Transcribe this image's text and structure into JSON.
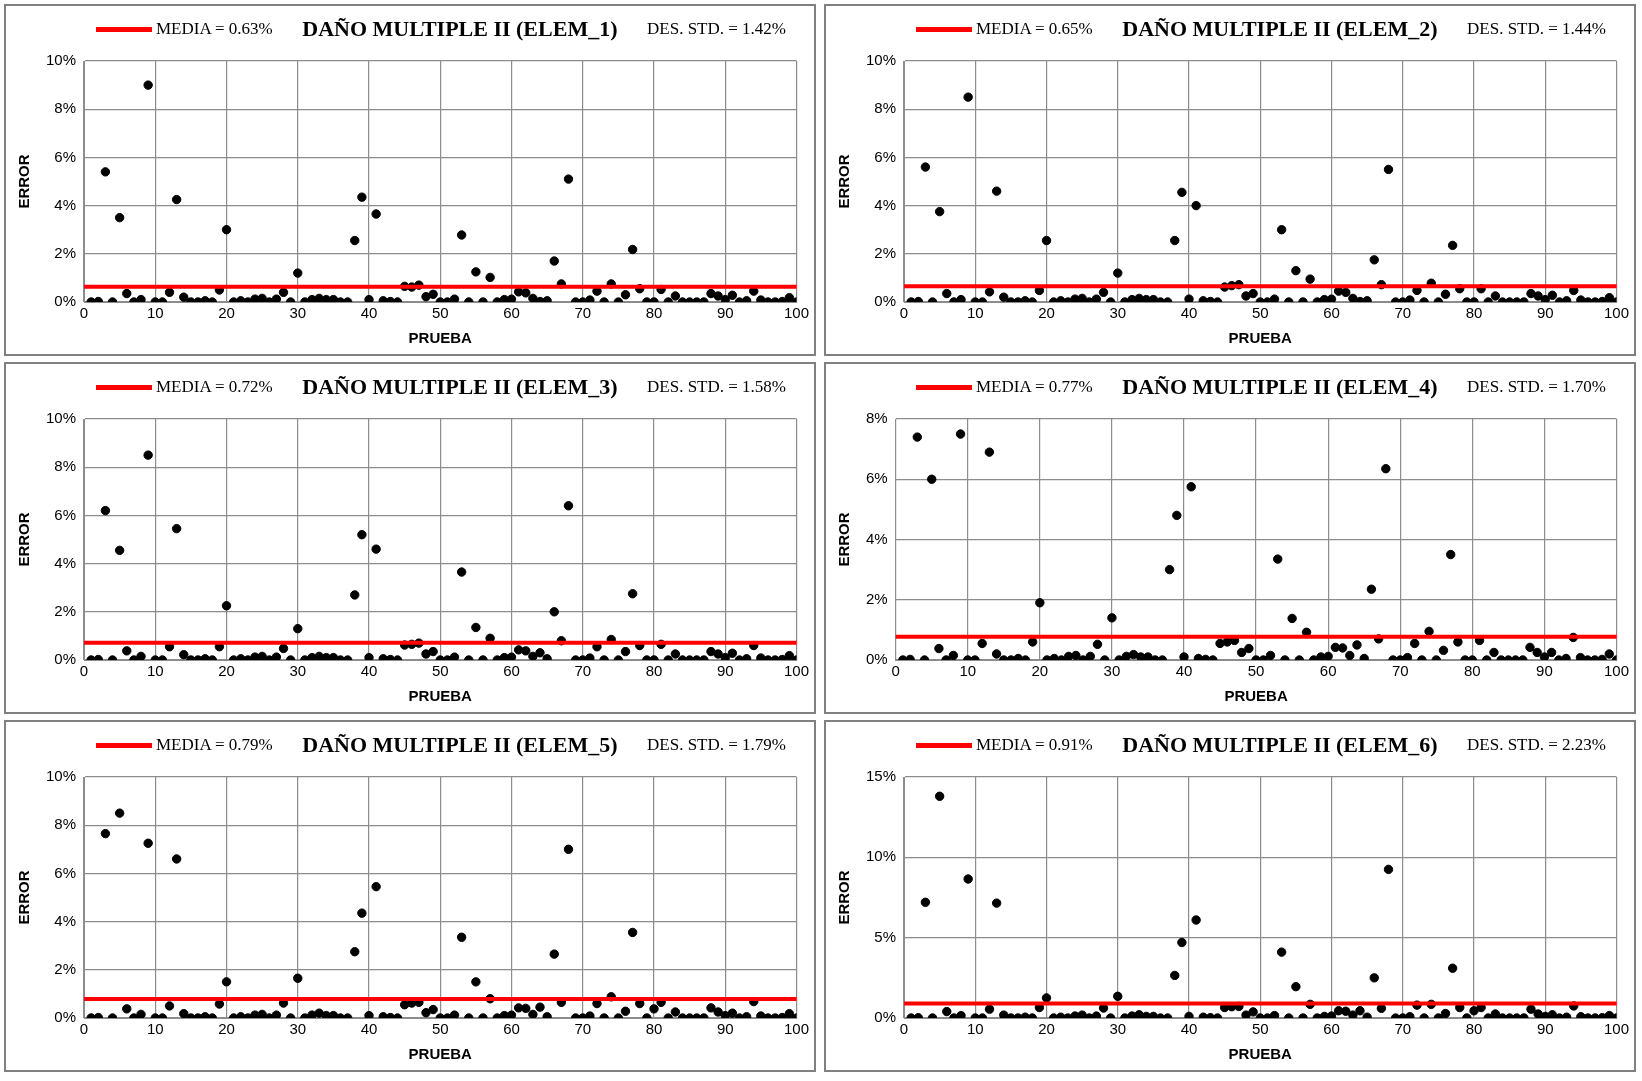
{
  "chart_data": [
    {
      "type": "scatter",
      "title": "DAÑO MULTIPLE II (ELEM_1)",
      "xlabel": "PRUEBA",
      "ylabel": "ERROR",
      "color": "#000000",
      "marker": "circle",
      "grid": true,
      "x": [
        1,
        2,
        3,
        4,
        5,
        6,
        7,
        8,
        9,
        10,
        11,
        12,
        13,
        14,
        15,
        16,
        17,
        18,
        19,
        20,
        21,
        22,
        23,
        24,
        25,
        26,
        27,
        28,
        29,
        30,
        31,
        32,
        33,
        34,
        35,
        36,
        37,
        38,
        39,
        40,
        41,
        42,
        43,
        44,
        45,
        46,
        47,
        48,
        49,
        50,
        51,
        52,
        53,
        54,
        55,
        56,
        57,
        58,
        59,
        60,
        61,
        62,
        63,
        64,
        65,
        66,
        67,
        68,
        69,
        70,
        71,
        72,
        73,
        74,
        75,
        76,
        77,
        78,
        79,
        80,
        81,
        82,
        83,
        84,
        85,
        86,
        87,
        88,
        89,
        90,
        91,
        92,
        93,
        94,
        95,
        96,
        97,
        98,
        99,
        100
      ],
      "values": [
        0,
        0.02,
        5.4,
        0,
        3.5,
        0.35,
        0,
        0.1,
        9.0,
        0,
        0,
        0.4,
        4.25,
        0.2,
        0,
        0,
        0.05,
        0,
        0.5,
        3.0,
        0,
        0.05,
        0,
        0.12,
        0.15,
        0,
        0.12,
        0.4,
        0,
        1.2,
        0,
        0.1,
        0.15,
        0.1,
        0.1,
        0,
        0,
        2.55,
        4.35,
        0.1,
        3.65,
        0.05,
        0.02,
        0,
        0.65,
        0.62,
        0.7,
        0.22,
        0.32,
        0,
        0,
        0.12,
        2.78,
        0,
        1.25,
        0,
        1.02,
        0,
        0.1,
        0.12,
        0.42,
        0.38,
        0.15,
        0.02,
        0.05,
        1.7,
        0.75,
        5.1,
        0,
        0,
        0.08,
        0.45,
        0,
        0.75,
        0,
        0.3,
        2.18,
        0.55,
        0,
        0,
        0.52,
        0,
        0.25,
        0,
        0,
        0,
        0,
        0.35,
        0.25,
        0.1,
        0.28,
        0,
        0.05,
        0.45,
        0.08,
        0,
        0,
        0.02,
        0.18,
        0
      ],
      "xlim": [
        0,
        100
      ],
      "xticks": [
        0,
        10,
        20,
        30,
        40,
        50,
        60,
        70,
        80,
        90,
        100
      ],
      "ylim": [
        0,
        10
      ],
      "yticks": [
        {
          "value": 0,
          "label": "0%"
        },
        {
          "value": 2,
          "label": "2%"
        },
        {
          "value": 4,
          "label": "4%"
        },
        {
          "value": 6,
          "label": "6%"
        },
        {
          "value": 8,
          "label": "8%"
        },
        {
          "value": 10,
          "label": "10%"
        }
      ],
      "ref_lines": [
        {
          "axis": "y",
          "value": 0.63,
          "label": "MEDIA = 0.63%",
          "color": "#ff0000"
        }
      ],
      "annotations": [
        "DES. STD. = 1.42%"
      ]
    },
    {
      "type": "scatter",
      "title": "DAÑO MULTIPLE II (ELEM_2)",
      "xlabel": "PRUEBA",
      "ylabel": "ERROR",
      "color": "#000000",
      "marker": "circle",
      "grid": true,
      "x": [
        1,
        2,
        3,
        4,
        5,
        6,
        7,
        8,
        9,
        10,
        11,
        12,
        13,
        14,
        15,
        16,
        17,
        18,
        19,
        20,
        21,
        22,
        23,
        24,
        25,
        26,
        27,
        28,
        29,
        30,
        31,
        32,
        33,
        34,
        35,
        36,
        37,
        38,
        39,
        40,
        41,
        42,
        43,
        44,
        45,
        46,
        47,
        48,
        49,
        50,
        51,
        52,
        53,
        54,
        55,
        56,
        57,
        58,
        59,
        60,
        61,
        62,
        63,
        64,
        65,
        66,
        67,
        68,
        69,
        70,
        71,
        72,
        73,
        74,
        75,
        76,
        77,
        78,
        79,
        80,
        81,
        82,
        83,
        84,
        85,
        86,
        87,
        88,
        89,
        90,
        91,
        92,
        93,
        94,
        95,
        96,
        97,
        98,
        99,
        100
      ],
      "values": [
        0,
        0.02,
        5.6,
        0,
        3.75,
        0.35,
        0,
        0.1,
        8.5,
        0,
        0,
        0.42,
        4.6,
        0.2,
        0,
        0,
        0.05,
        0,
        0.48,
        2.55,
        0,
        0.05,
        0,
        0.12,
        0.15,
        0,
        0.12,
        0.4,
        0,
        1.2,
        0,
        0.1,
        0.15,
        0.1,
        0.1,
        0,
        0,
        2.55,
        4.55,
        0.12,
        4.0,
        0.05,
        0.02,
        0,
        0.62,
        0.68,
        0.72,
        0.25,
        0.35,
        0,
        0,
        0.12,
        3.0,
        0,
        1.3,
        0,
        0.95,
        0,
        0.1,
        0.12,
        0.45,
        0.4,
        0.15,
        0.02,
        0.05,
        1.75,
        0.72,
        5.5,
        0,
        0,
        0.08,
        0.48,
        0,
        0.78,
        0,
        0.32,
        2.35,
        0.55,
        0,
        0,
        0.55,
        0,
        0.25,
        0,
        0,
        0,
        0,
        0.35,
        0.25,
        0.1,
        0.28,
        0,
        0.05,
        0.48,
        0.08,
        0,
        0,
        0.02,
        0.18,
        0
      ],
      "xlim": [
        0,
        100
      ],
      "xticks": [
        0,
        10,
        20,
        30,
        40,
        50,
        60,
        70,
        80,
        90,
        100
      ],
      "ylim": [
        0,
        10
      ],
      "yticks": [
        {
          "value": 0,
          "label": "0%"
        },
        {
          "value": 2,
          "label": "2%"
        },
        {
          "value": 4,
          "label": "4%"
        },
        {
          "value": 6,
          "label": "6%"
        },
        {
          "value": 8,
          "label": "8%"
        },
        {
          "value": 10,
          "label": "10%"
        }
      ],
      "ref_lines": [
        {
          "axis": "y",
          "value": 0.65,
          "label": "MEDIA = 0.65%",
          "color": "#ff0000"
        }
      ],
      "annotations": [
        "DES. STD. = 1.44%"
      ]
    },
    {
      "type": "scatter",
      "title": "DAÑO MULTIPLE II (ELEM_3)",
      "xlabel": "PRUEBA",
      "ylabel": "ERROR",
      "color": "#000000",
      "marker": "circle",
      "grid": true,
      "x": [
        1,
        2,
        3,
        4,
        5,
        6,
        7,
        8,
        9,
        10,
        11,
        12,
        13,
        14,
        15,
        16,
        17,
        18,
        19,
        20,
        21,
        22,
        23,
        24,
        25,
        26,
        27,
        28,
        29,
        30,
        31,
        32,
        33,
        34,
        35,
        36,
        37,
        38,
        39,
        40,
        41,
        42,
        43,
        44,
        45,
        46,
        47,
        48,
        49,
        50,
        51,
        52,
        53,
        54,
        55,
        56,
        57,
        58,
        59,
        60,
        61,
        62,
        63,
        64,
        65,
        66,
        67,
        68,
        69,
        70,
        71,
        72,
        73,
        74,
        75,
        76,
        77,
        78,
        79,
        80,
        81,
        82,
        83,
        84,
        85,
        86,
        87,
        88,
        89,
        90,
        91,
        92,
        93,
        94,
        95,
        96,
        97,
        98,
        99,
        100
      ],
      "values": [
        0,
        0.02,
        6.2,
        0,
        4.55,
        0.38,
        0,
        0.15,
        8.5,
        0,
        0,
        0.55,
        5.45,
        0.22,
        0,
        0,
        0.05,
        0,
        0.55,
        2.25,
        0,
        0.05,
        0,
        0.12,
        0.15,
        0,
        0.12,
        0.48,
        0,
        1.3,
        0,
        0.1,
        0.15,
        0.1,
        0.1,
        0,
        0,
        2.7,
        5.2,
        0.1,
        4.6,
        0.05,
        0.02,
        0,
        0.62,
        0.65,
        0.7,
        0.25,
        0.35,
        0,
        0,
        0.12,
        3.65,
        0,
        1.35,
        0,
        0.9,
        0,
        0.1,
        0.12,
        0.42,
        0.38,
        0.15,
        0.3,
        0.05,
        2.0,
        0.8,
        6.4,
        0,
        0,
        0.08,
        0.55,
        0,
        0.85,
        0,
        0.35,
        2.75,
        0.6,
        0,
        0,
        0.65,
        0,
        0.25,
        0,
        0,
        0,
        0,
        0.35,
        0.25,
        0.1,
        0.28,
        0,
        0.05,
        0.6,
        0.08,
        0,
        0,
        0.02,
        0.18,
        0
      ],
      "xlim": [
        0,
        100
      ],
      "xticks": [
        0,
        10,
        20,
        30,
        40,
        50,
        60,
        70,
        80,
        90,
        100
      ],
      "ylim": [
        0,
        10
      ],
      "yticks": [
        {
          "value": 0,
          "label": "0%"
        },
        {
          "value": 2,
          "label": "2%"
        },
        {
          "value": 4,
          "label": "4%"
        },
        {
          "value": 6,
          "label": "6%"
        },
        {
          "value": 8,
          "label": "8%"
        },
        {
          "value": 10,
          "label": "10%"
        }
      ],
      "ref_lines": [
        {
          "axis": "y",
          "value": 0.72,
          "label": "MEDIA = 0.72%",
          "color": "#ff0000"
        }
      ],
      "annotations": [
        "DES. STD. = 1.58%"
      ]
    },
    {
      "type": "scatter",
      "title": "DAÑO MULTIPLE II (ELEM_4)",
      "xlabel": "PRUEBA",
      "ylabel": "ERROR",
      "color": "#000000",
      "marker": "circle",
      "grid": true,
      "x": [
        1,
        2,
        3,
        4,
        5,
        6,
        7,
        8,
        9,
        10,
        11,
        12,
        13,
        14,
        15,
        16,
        17,
        18,
        19,
        20,
        21,
        22,
        23,
        24,
        25,
        26,
        27,
        28,
        29,
        30,
        31,
        32,
        33,
        34,
        35,
        36,
        37,
        38,
        39,
        40,
        41,
        42,
        43,
        44,
        45,
        46,
        47,
        48,
        49,
        50,
        51,
        52,
        53,
        54,
        55,
        56,
        57,
        58,
        59,
        60,
        61,
        62,
        63,
        64,
        65,
        66,
        67,
        68,
        69,
        70,
        71,
        72,
        73,
        74,
        75,
        76,
        77,
        78,
        79,
        80,
        81,
        82,
        83,
        84,
        85,
        86,
        87,
        88,
        89,
        90,
        91,
        92,
        93,
        94,
        95,
        96,
        97,
        98,
        99,
        100
      ],
      "values": [
        0,
        0.02,
        7.4,
        0,
        6.0,
        0.38,
        0,
        0.15,
        7.5,
        0,
        0,
        0.55,
        6.9,
        0.2,
        0,
        0,
        0.05,
        0,
        0.6,
        1.9,
        0,
        0.05,
        0,
        0.12,
        0.15,
        0,
        0.12,
        0.52,
        0,
        1.4,
        0,
        0.12,
        0.18,
        0.1,
        0.1,
        0,
        0,
        3.0,
        4.8,
        0.1,
        5.75,
        0.05,
        0.02,
        0,
        0.55,
        0.6,
        0.65,
        0.25,
        0.38,
        0,
        0,
        0.15,
        3.35,
        0,
        1.38,
        0,
        0.92,
        0,
        0.1,
        0.12,
        0.42,
        0.4,
        0.15,
        0.5,
        0.05,
        2.35,
        0.7,
        6.35,
        0,
        0,
        0.08,
        0.55,
        0,
        0.95,
        0,
        0.32,
        3.5,
        0.6,
        0,
        0,
        0.65,
        0,
        0.25,
        0,
        0,
        0,
        0,
        0.42,
        0.25,
        0.1,
        0.25,
        0,
        0.05,
        0.75,
        0.08,
        0,
        0,
        0.02,
        0.2,
        0
      ],
      "xlim": [
        0,
        100
      ],
      "xticks": [
        0,
        10,
        20,
        30,
        40,
        50,
        60,
        70,
        80,
        90,
        100
      ],
      "ylim": [
        0,
        8
      ],
      "yticks": [
        {
          "value": 0,
          "label": "0%"
        },
        {
          "value": 2,
          "label": "2%"
        },
        {
          "value": 4,
          "label": "4%"
        },
        {
          "value": 6,
          "label": "6%"
        },
        {
          "value": 8,
          "label": "8%"
        }
      ],
      "ref_lines": [
        {
          "axis": "y",
          "value": 0.77,
          "label": "MEDIA = 0.77%",
          "color": "#ff0000"
        }
      ],
      "annotations": [
        "DES. STD. = 1.70%"
      ]
    },
    {
      "type": "scatter",
      "title": "DAÑO MULTIPLE II (ELEM_5)",
      "xlabel": "PRUEBA",
      "ylabel": "ERROR",
      "color": "#000000",
      "marker": "circle",
      "grid": true,
      "x": [
        1,
        2,
        3,
        4,
        5,
        6,
        7,
        8,
        9,
        10,
        11,
        12,
        13,
        14,
        15,
        16,
        17,
        18,
        19,
        20,
        21,
        22,
        23,
        24,
        25,
        26,
        27,
        28,
        29,
        30,
        31,
        32,
        33,
        34,
        35,
        36,
        37,
        38,
        39,
        40,
        41,
        42,
        43,
        44,
        45,
        46,
        47,
        48,
        49,
        50,
        51,
        52,
        53,
        54,
        55,
        56,
        57,
        58,
        59,
        60,
        61,
        62,
        63,
        64,
        65,
        66,
        67,
        68,
        69,
        70,
        71,
        72,
        73,
        74,
        75,
        76,
        77,
        78,
        79,
        80,
        81,
        82,
        83,
        84,
        85,
        86,
        87,
        88,
        89,
        90,
        91,
        92,
        93,
        94,
        95,
        96,
        97,
        98,
        99,
        100
      ],
      "values": [
        0,
        0.02,
        7.65,
        0,
        8.5,
        0.38,
        0,
        0.15,
        7.25,
        0,
        0,
        0.5,
        6.6,
        0.18,
        0,
        0,
        0.05,
        0,
        0.58,
        1.5,
        0,
        0.05,
        0,
        0.12,
        0.15,
        0,
        0.12,
        0.62,
        0,
        1.65,
        0,
        0.12,
        0.2,
        0.1,
        0.1,
        0,
        0,
        2.75,
        4.35,
        0.1,
        5.45,
        0.05,
        0.02,
        0,
        0.55,
        0.62,
        0.65,
        0.22,
        0.35,
        0,
        0,
        0.12,
        3.35,
        0,
        1.5,
        0,
        0.8,
        0,
        0.1,
        0.12,
        0.42,
        0.4,
        0.15,
        0.45,
        0.05,
        2.65,
        0.65,
        7.0,
        0,
        0,
        0.08,
        0.6,
        0,
        0.88,
        0,
        0.28,
        3.55,
        0.6,
        0,
        0.38,
        0.65,
        0,
        0.25,
        0,
        0,
        0,
        0,
        0.42,
        0.25,
        0.1,
        0.2,
        0,
        0.05,
        0.68,
        0.08,
        0,
        0,
        0.02,
        0.18,
        0
      ],
      "xlim": [
        0,
        100
      ],
      "xticks": [
        0,
        10,
        20,
        30,
        40,
        50,
        60,
        70,
        80,
        90,
        100
      ],
      "ylim": [
        0,
        10
      ],
      "yticks": [
        {
          "value": 0,
          "label": "0%"
        },
        {
          "value": 2,
          "label": "2%"
        },
        {
          "value": 4,
          "label": "4%"
        },
        {
          "value": 6,
          "label": "6%"
        },
        {
          "value": 8,
          "label": "8%"
        },
        {
          "value": 10,
          "label": "10%"
        }
      ],
      "ref_lines": [
        {
          "axis": "y",
          "value": 0.79,
          "label": "MEDIA = 0.79%",
          "color": "#ff0000"
        }
      ],
      "annotations": [
        "DES. STD. = 1.79%"
      ]
    },
    {
      "type": "scatter",
      "title": "DAÑO MULTIPLE II (ELEM_6)",
      "xlabel": "PRUEBA",
      "ylabel": "ERROR",
      "color": "#000000",
      "marker": "circle",
      "grid": true,
      "x": [
        1,
        2,
        3,
        4,
        5,
        6,
        7,
        8,
        9,
        10,
        11,
        12,
        13,
        14,
        15,
        16,
        17,
        18,
        19,
        20,
        21,
        22,
        23,
        24,
        25,
        26,
        27,
        28,
        29,
        30,
        31,
        32,
        33,
        34,
        35,
        36,
        37,
        38,
        39,
        40,
        41,
        42,
        43,
        44,
        45,
        46,
        47,
        48,
        49,
        50,
        51,
        52,
        53,
        54,
        55,
        56,
        57,
        58,
        59,
        60,
        61,
        62,
        63,
        64,
        65,
        66,
        67,
        68,
        69,
        70,
        71,
        72,
        73,
        74,
        75,
        76,
        77,
        78,
        79,
        80,
        81,
        82,
        83,
        84,
        85,
        86,
        87,
        88,
        89,
        90,
        91,
        92,
        93,
        94,
        95,
        96,
        97,
        98,
        99,
        100
      ],
      "values": [
        0,
        0.02,
        7.2,
        0,
        13.8,
        0.4,
        0,
        0.15,
        8.65,
        0,
        0,
        0.55,
        7.15,
        0.18,
        0,
        0,
        0.05,
        0,
        0.65,
        1.25,
        0,
        0.05,
        0,
        0.12,
        0.18,
        0,
        0.12,
        0.62,
        0,
        1.35,
        0,
        0.12,
        0.2,
        0.1,
        0.1,
        0,
        0,
        2.65,
        4.7,
        0.1,
        6.1,
        0.05,
        0.02,
        0,
        0.65,
        0.7,
        0.72,
        0.18,
        0.38,
        0,
        0,
        0.15,
        4.1,
        0,
        1.95,
        0,
        0.85,
        0,
        0.1,
        0.12,
        0.45,
        0.42,
        0.18,
        0.45,
        0.05,
        2.5,
        0.6,
        9.25,
        0,
        0,
        0.08,
        0.8,
        0,
        0.85,
        0,
        0.28,
        3.1,
        0.65,
        0,
        0.45,
        0.65,
        0,
        0.25,
        0,
        0,
        0,
        0,
        0.55,
        0.25,
        0.1,
        0.2,
        0,
        0.05,
        0.75,
        0.08,
        0,
        0,
        0.02,
        0.15,
        0
      ],
      "xlim": [
        0,
        100
      ],
      "xticks": [
        0,
        10,
        20,
        30,
        40,
        50,
        60,
        70,
        80,
        90,
        100
      ],
      "ylim": [
        0,
        15
      ],
      "yticks": [
        {
          "value": 0,
          "label": "0%"
        },
        {
          "value": 5,
          "label": "5%"
        },
        {
          "value": 10,
          "label": "10%"
        },
        {
          "value": 15,
          "label": "15%"
        }
      ],
      "ref_lines": [
        {
          "axis": "y",
          "value": 0.91,
          "label": "MEDIA = 0.91%",
          "color": "#ff0000"
        }
      ],
      "annotations": [
        "DES. STD. = 2.23%"
      ]
    }
  ]
}
